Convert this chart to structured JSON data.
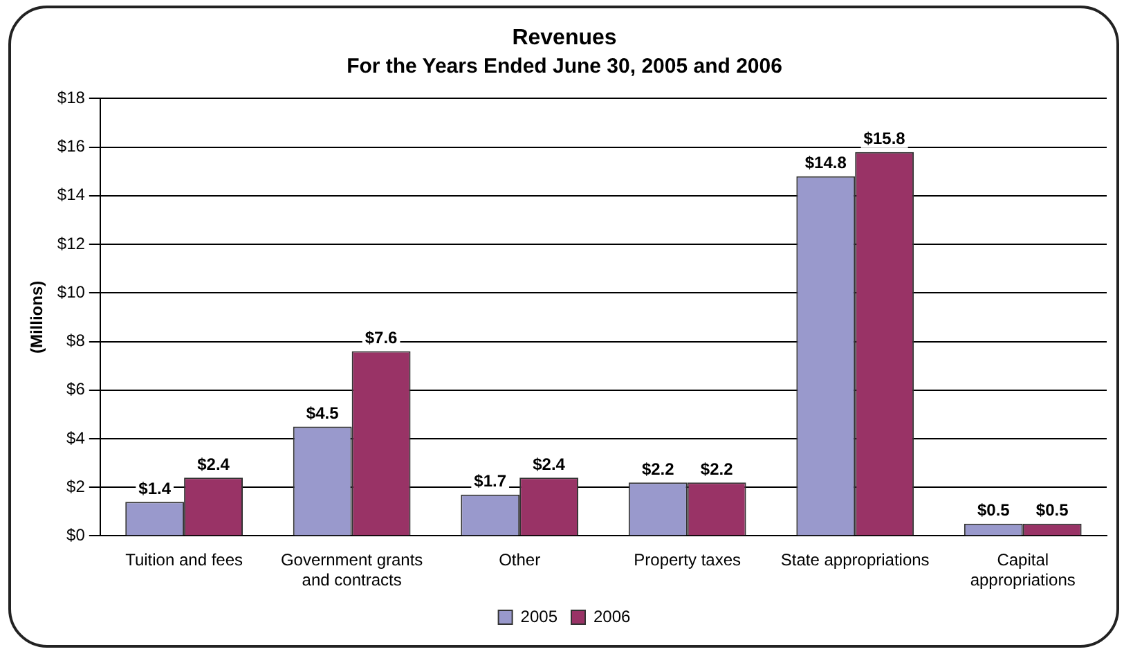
{
  "chart_data": {
    "type": "bar",
    "title": "Revenues",
    "subtitle": "For the Years Ended June 30, 2005 and 2006",
    "ylabel": "(Millions)",
    "categories": [
      "Tuition and fees",
      "Government grants and contracts",
      "Other",
      "Property taxes",
      "State appropriations",
      "Capital appropriations"
    ],
    "series": [
      {
        "name": "2005",
        "color": "#9999cc",
        "values": [
          1.4,
          4.5,
          1.7,
          2.2,
          14.8,
          0.5
        ],
        "value_labels": [
          "$1.4",
          "$4.5",
          "$1.7",
          "$2.2",
          "$14.8",
          "$0.5"
        ]
      },
      {
        "name": "2006",
        "color": "#993366",
        "values": [
          2.4,
          7.6,
          2.4,
          2.2,
          15.8,
          0.5
        ],
        "value_labels": [
          "$2.4",
          "$7.6",
          "$2.4",
          "$2.2",
          "$15.8",
          "$0.5"
        ]
      }
    ],
    "ylim": [
      0,
      18
    ],
    "yticks": [
      {
        "value": 0,
        "label": "$0"
      },
      {
        "value": 2,
        "label": "$2"
      },
      {
        "value": 4,
        "label": "$4"
      },
      {
        "value": 6,
        "label": "$6"
      },
      {
        "value": 8,
        "label": "$8"
      },
      {
        "value": 10,
        "label": "$10"
      },
      {
        "value": 12,
        "label": "$12"
      },
      {
        "value": 14,
        "label": "$14"
      },
      {
        "value": 16,
        "label": "$16"
      },
      {
        "value": 18,
        "label": "$18"
      }
    ],
    "grid": "y",
    "legend": "bottom"
  }
}
